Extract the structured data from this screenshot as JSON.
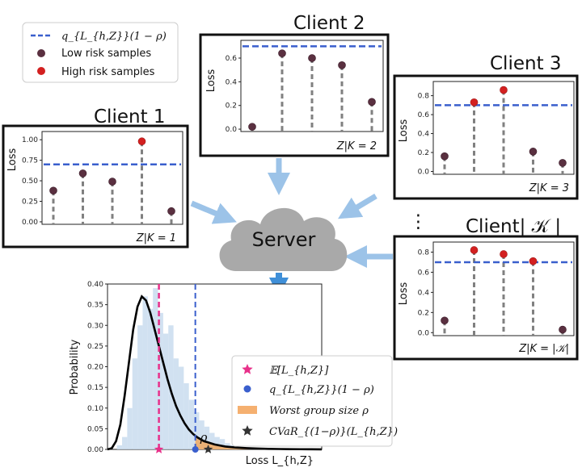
{
  "legend_top": {
    "items": [
      {
        "label": "q_{L_{h,Z}}(1 − ρ)",
        "color": "#3a5fcd"
      },
      {
        "label": "Low risk samples",
        "color": "#5a3040"
      },
      {
        "label": "High risk samples",
        "color": "#d32020"
      }
    ]
  },
  "server": {
    "label": "Server"
  },
  "ellipsis": "⋮",
  "colors": {
    "threshold": "#3a5fcd",
    "low": "#5a3040",
    "high": "#d32020",
    "stem": "#808080",
    "arrow": "#9cc3e8",
    "arrow_dark": "#3f8fd8",
    "cloud": "#a9a9a9"
  },
  "chart_data": [
    {
      "type": "scatter",
      "name": "Client 1",
      "title": "Client  1",
      "ylabel": "Loss",
      "xlabel": "Z|K = 1",
      "yticks": [
        "0.00",
        "0.25",
        "0.50",
        "0.75",
        "1.00"
      ],
      "ylim": [
        -0.03,
        1.1
      ],
      "threshold": 0.7,
      "values": [
        0.38,
        0.59,
        0.49,
        0.98,
        0.13
      ],
      "risk": [
        "low",
        "low",
        "low",
        "high",
        "low"
      ]
    },
    {
      "type": "scatter",
      "name": "Client 2",
      "title": "Client 2",
      "ylabel": "Loss",
      "xlabel": "Z|K = 2",
      "yticks": [
        "0.0",
        "0.2",
        "0.4",
        "0.6"
      ],
      "ylim": [
        -0.02,
        0.75
      ],
      "threshold": 0.7,
      "values": [
        0.02,
        0.64,
        0.6,
        0.54,
        0.23
      ],
      "risk": [
        "low",
        "low",
        "low",
        "low",
        "low"
      ]
    },
    {
      "type": "scatter",
      "name": "Client 3",
      "title": "Client 3",
      "ylabel": "Loss",
      "xlabel": "Z|K = 3",
      "yticks": [
        "0.0",
        "0.2",
        "0.4",
        "0.6",
        "0.8"
      ],
      "ylim": [
        -0.03,
        0.95
      ],
      "threshold": 0.7,
      "values": [
        0.16,
        0.73,
        0.86,
        0.21,
        0.09
      ],
      "risk": [
        "low",
        "high",
        "high",
        "low",
        "low"
      ]
    },
    {
      "type": "scatter",
      "name": "Client |K|",
      "title": "Client| 𝒦 |",
      "ylabel": "Loss",
      "xlabel": "Z|K = |𝒦|",
      "yticks": [
        "0.0",
        "0.2",
        "0.4",
        "0.6",
        "0.8"
      ],
      "ylim": [
        -0.03,
        0.9
      ],
      "threshold": 0.7,
      "values": [
        0.12,
        0.82,
        0.78,
        0.71,
        0.03
      ],
      "risk": [
        "low",
        "high",
        "high",
        "high",
        "low"
      ]
    },
    {
      "type": "area",
      "name": "Loss distribution",
      "ylabel": "Probability",
      "xlabel": "Loss L_{h,Z}",
      "yticks": [
        "0.00",
        "0.05",
        "0.10",
        "0.15",
        "0.20",
        "0.25",
        "0.30",
        "0.35",
        "0.40"
      ],
      "ylim": [
        0,
        0.4
      ],
      "xlim": [
        0,
        1
      ],
      "mean": 0.24,
      "quantile": 0.41,
      "cvar": 0.47,
      "rho_label": "ρ",
      "curve_x": [
        0.0,
        0.02,
        0.04,
        0.06,
        0.08,
        0.1,
        0.12,
        0.14,
        0.16,
        0.18,
        0.2,
        0.22,
        0.24,
        0.26,
        0.28,
        0.3,
        0.32,
        0.34,
        0.36,
        0.38,
        0.4,
        0.42,
        0.45,
        0.5,
        0.55,
        0.6,
        0.65,
        0.7,
        0.75,
        0.8,
        0.85,
        0.9,
        0.95,
        1.0
      ],
      "curve_y": [
        0.0,
        0.003,
        0.02,
        0.06,
        0.13,
        0.21,
        0.29,
        0.345,
        0.37,
        0.36,
        0.33,
        0.29,
        0.25,
        0.21,
        0.17,
        0.135,
        0.105,
        0.082,
        0.063,
        0.048,
        0.037,
        0.029,
        0.02,
        0.012,
        0.007,
        0.0045,
        0.003,
        0.002,
        0.0014,
        0.001,
        0.0007,
        0.0005,
        0.0003,
        0.0002
      ],
      "hist": [
        0.0,
        0.01,
        0.03,
        0.1,
        0.22,
        0.3,
        0.37,
        0.34,
        0.39,
        0.33,
        0.28,
        0.3,
        0.22,
        0.2,
        0.16,
        0.12,
        0.09,
        0.07,
        0.055,
        0.04,
        0.03,
        0.025,
        0.015,
        0.01,
        0.006
      ],
      "legend": [
        {
          "label": "𝔼[L_{h,Z}]",
          "marker": "star",
          "color": "#e8308a"
        },
        {
          "label": "q_{L_{h,Z}}(1 − ρ)",
          "marker": "dot",
          "color": "#3a5fcd"
        },
        {
          "label": "Worst group size ρ",
          "marker": "patch",
          "color": "#f5b070"
        },
        {
          "label": "CVaR_{(1−ρ)}(L_{h,Z})",
          "marker": "star",
          "color": "#333333"
        }
      ]
    }
  ]
}
